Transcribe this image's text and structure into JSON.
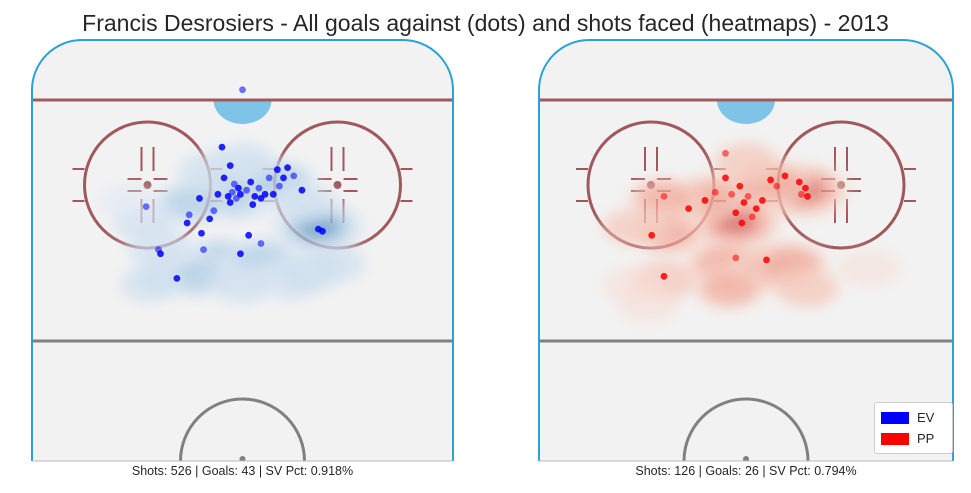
{
  "title": "Francis Desrosiers - All goals against (dots) and shots faced (heatmaps) - 2013",
  "colors": {
    "ice": "#f2f2f2",
    "boards": "#2aa3d4",
    "goal_line": "#a05a5e",
    "faceoff": "#a0585c",
    "blue_line": "#808080",
    "crease": "#7ec4e6",
    "ev": "#0000ff",
    "pp": "#ff0000"
  },
  "legend": {
    "ev_label": "EV",
    "pp_label": "PP"
  },
  "chart_data": [
    {
      "type": "scatter",
      "panel": "left",
      "strength": "EV",
      "caption": "Shots: 526 | Goals: 43 | SV Pct: 0.918%",
      "shots": 526,
      "goals": 43,
      "sv_pct": "0.918%",
      "heatmap_color": "blue",
      "goals_xy": [
        [
          0,
          -5
        ],
        [
          -10,
          23
        ],
        [
          -6,
          32
        ],
        [
          -4,
          41
        ],
        [
          -9,
          38
        ],
        [
          -2,
          43
        ],
        [
          -5,
          45
        ],
        [
          -7,
          47
        ],
        [
          -12,
          46
        ],
        [
          -3,
          48
        ],
        [
          -6,
          50
        ],
        [
          -1,
          46
        ],
        [
          2,
          44
        ],
        [
          4,
          40
        ],
        [
          6,
          47
        ],
        [
          8,
          43
        ],
        [
          9,
          48
        ],
        [
          11,
          46
        ],
        [
          13,
          38
        ],
        [
          15,
          46
        ],
        [
          17,
          34
        ],
        [
          18,
          42
        ],
        [
          20,
          38
        ],
        [
          22,
          33
        ],
        [
          25,
          37
        ],
        [
          29,
          44
        ],
        [
          -21,
          48
        ],
        [
          -14,
          54
        ],
        [
          -16,
          58
        ],
        [
          5,
          51
        ],
        [
          -26,
          56
        ],
        [
          -20,
          65
        ],
        [
          -27,
          60
        ],
        [
          -19,
          73
        ],
        [
          3,
          66
        ],
        [
          -1,
          75
        ],
        [
          9,
          70
        ],
        [
          -32,
          87
        ],
        [
          -40,
          75
        ],
        [
          -41,
          73
        ],
        [
          37,
          63
        ],
        [
          39,
          64
        ],
        [
          -47,
          52
        ]
      ],
      "heat_centers": [
        [
          -5,
          45,
          0.95
        ],
        [
          5,
          40,
          0.7
        ],
        [
          -25,
          50,
          0.5
        ],
        [
          18,
          40,
          0.55
        ],
        [
          37,
          62,
          0.85
        ],
        [
          -10,
          78,
          0.55
        ],
        [
          10,
          78,
          0.5
        ],
        [
          -35,
          85,
          0.5
        ],
        [
          -22,
          86,
          0.45
        ],
        [
          33,
          84,
          0.45
        ],
        [
          24,
          88,
          0.4
        ],
        [
          -40,
          72,
          0.4
        ],
        [
          -48,
          60,
          0.3
        ],
        [
          -55,
          50,
          0.25
        ],
        [
          30,
          50,
          0.35
        ],
        [
          0,
          30,
          0.35
        ],
        [
          45,
          80,
          0.3
        ],
        [
          -45,
          90,
          0.3
        ],
        [
          0,
          90,
          0.35
        ],
        [
          -15,
          35,
          0.4
        ]
      ]
    },
    {
      "type": "scatter",
      "panel": "right",
      "strength": "PP",
      "caption": "Shots: 126 | Goals: 26 | SV Pct: 0.794%",
      "shots": 126,
      "goals": 26,
      "sv_pct": "0.794%",
      "heatmap_color": "red",
      "goals_xy": [
        [
          -10,
          26
        ],
        [
          -28,
          53
        ],
        [
          -10,
          38
        ],
        [
          -7,
          46
        ],
        [
          -3,
          42
        ],
        [
          -1,
          50
        ],
        [
          1,
          47
        ],
        [
          -5,
          55
        ],
        [
          -2,
          60
        ],
        [
          3,
          57
        ],
        [
          5,
          53
        ],
        [
          8,
          49
        ],
        [
          -15,
          45
        ],
        [
          -20,
          49
        ],
        [
          12,
          39
        ],
        [
          15,
          42
        ],
        [
          19,
          37
        ],
        [
          26,
          40
        ],
        [
          27,
          46
        ],
        [
          29,
          43
        ],
        [
          30,
          47
        ],
        [
          -40,
          47
        ],
        [
          -46,
          66
        ],
        [
          -40,
          86
        ],
        [
          -5,
          77
        ],
        [
          10,
          78
        ]
      ],
      "heat_centers": [
        [
          -3,
          48,
          0.95
        ],
        [
          -5,
          60,
          0.8
        ],
        [
          28,
          44,
          0.8
        ],
        [
          12,
          40,
          0.55
        ],
        [
          -20,
          48,
          0.5
        ],
        [
          -40,
          48,
          0.45
        ],
        [
          -38,
          65,
          0.45
        ],
        [
          -10,
          80,
          0.6
        ],
        [
          15,
          82,
          0.7
        ],
        [
          22,
          80,
          0.5
        ],
        [
          -40,
          88,
          0.4
        ],
        [
          -8,
          92,
          0.45
        ],
        [
          30,
          92,
          0.35
        ],
        [
          -55,
          62,
          0.3
        ],
        [
          0,
          30,
          0.35
        ],
        [
          -48,
          100,
          0.2
        ],
        [
          60,
          82,
          0.2
        ],
        [
          -55,
          90,
          0.2
        ]
      ]
    }
  ]
}
